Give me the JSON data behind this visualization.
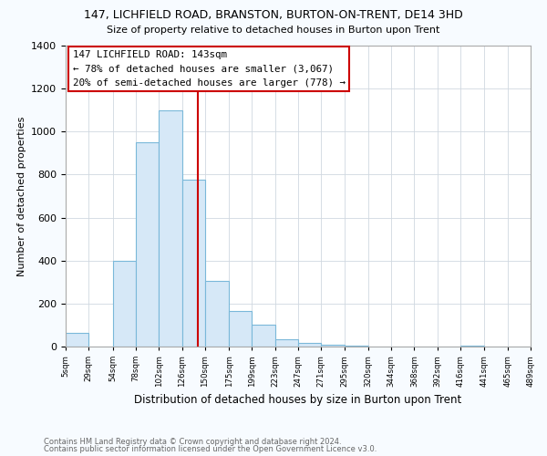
{
  "title": "147, LICHFIELD ROAD, BRANSTON, BURTON-ON-TRENT, DE14 3HD",
  "subtitle": "Size of property relative to detached houses in Burton upon Trent",
  "xlabel": "Distribution of detached houses by size in Burton upon Trent",
  "ylabel": "Number of detached properties",
  "bar_color": "#d6e8f7",
  "bar_edge_color": "#7ab8d9",
  "bin_edges": [
    5,
    29,
    54,
    78,
    102,
    126,
    150,
    175,
    199,
    223,
    247,
    271,
    295,
    320,
    344,
    368,
    392,
    416,
    441,
    465,
    489
  ],
  "bar_heights": [
    65,
    0,
    400,
    950,
    1100,
    775,
    305,
    165,
    100,
    35,
    15,
    8,
    5,
    0,
    0,
    0,
    0,
    5,
    0,
    0
  ],
  "property_size": 143,
  "vline_color": "#cc0000",
  "annotation_title": "147 LICHFIELD ROAD: 143sqm",
  "annotation_line1": "← 78% of detached houses are smaller (3,067)",
  "annotation_line2": "20% of semi-detached houses are larger (778) →",
  "annotation_box_edge": "#cc0000",
  "annotation_box_face": "#ffffff",
  "ylim": [
    0,
    1400
  ],
  "yticks": [
    0,
    200,
    400,
    600,
    800,
    1000,
    1200,
    1400
  ],
  "xtick_labels": [
    "5sqm",
    "29sqm",
    "54sqm",
    "78sqm",
    "102sqm",
    "126sqm",
    "150sqm",
    "175sqm",
    "199sqm",
    "223sqm",
    "247sqm",
    "271sqm",
    "295sqm",
    "320sqm",
    "344sqm",
    "368sqm",
    "392sqm",
    "416sqm",
    "441sqm",
    "465sqm",
    "489sqm"
  ],
  "footnote1": "Contains HM Land Registry data © Crown copyright and database right 2024.",
  "footnote2": "Contains public sector information licensed under the Open Government Licence v3.0.",
  "background_color": "#f7fbff",
  "plot_background": "#ffffff",
  "grid_color": "#d0d8e0"
}
